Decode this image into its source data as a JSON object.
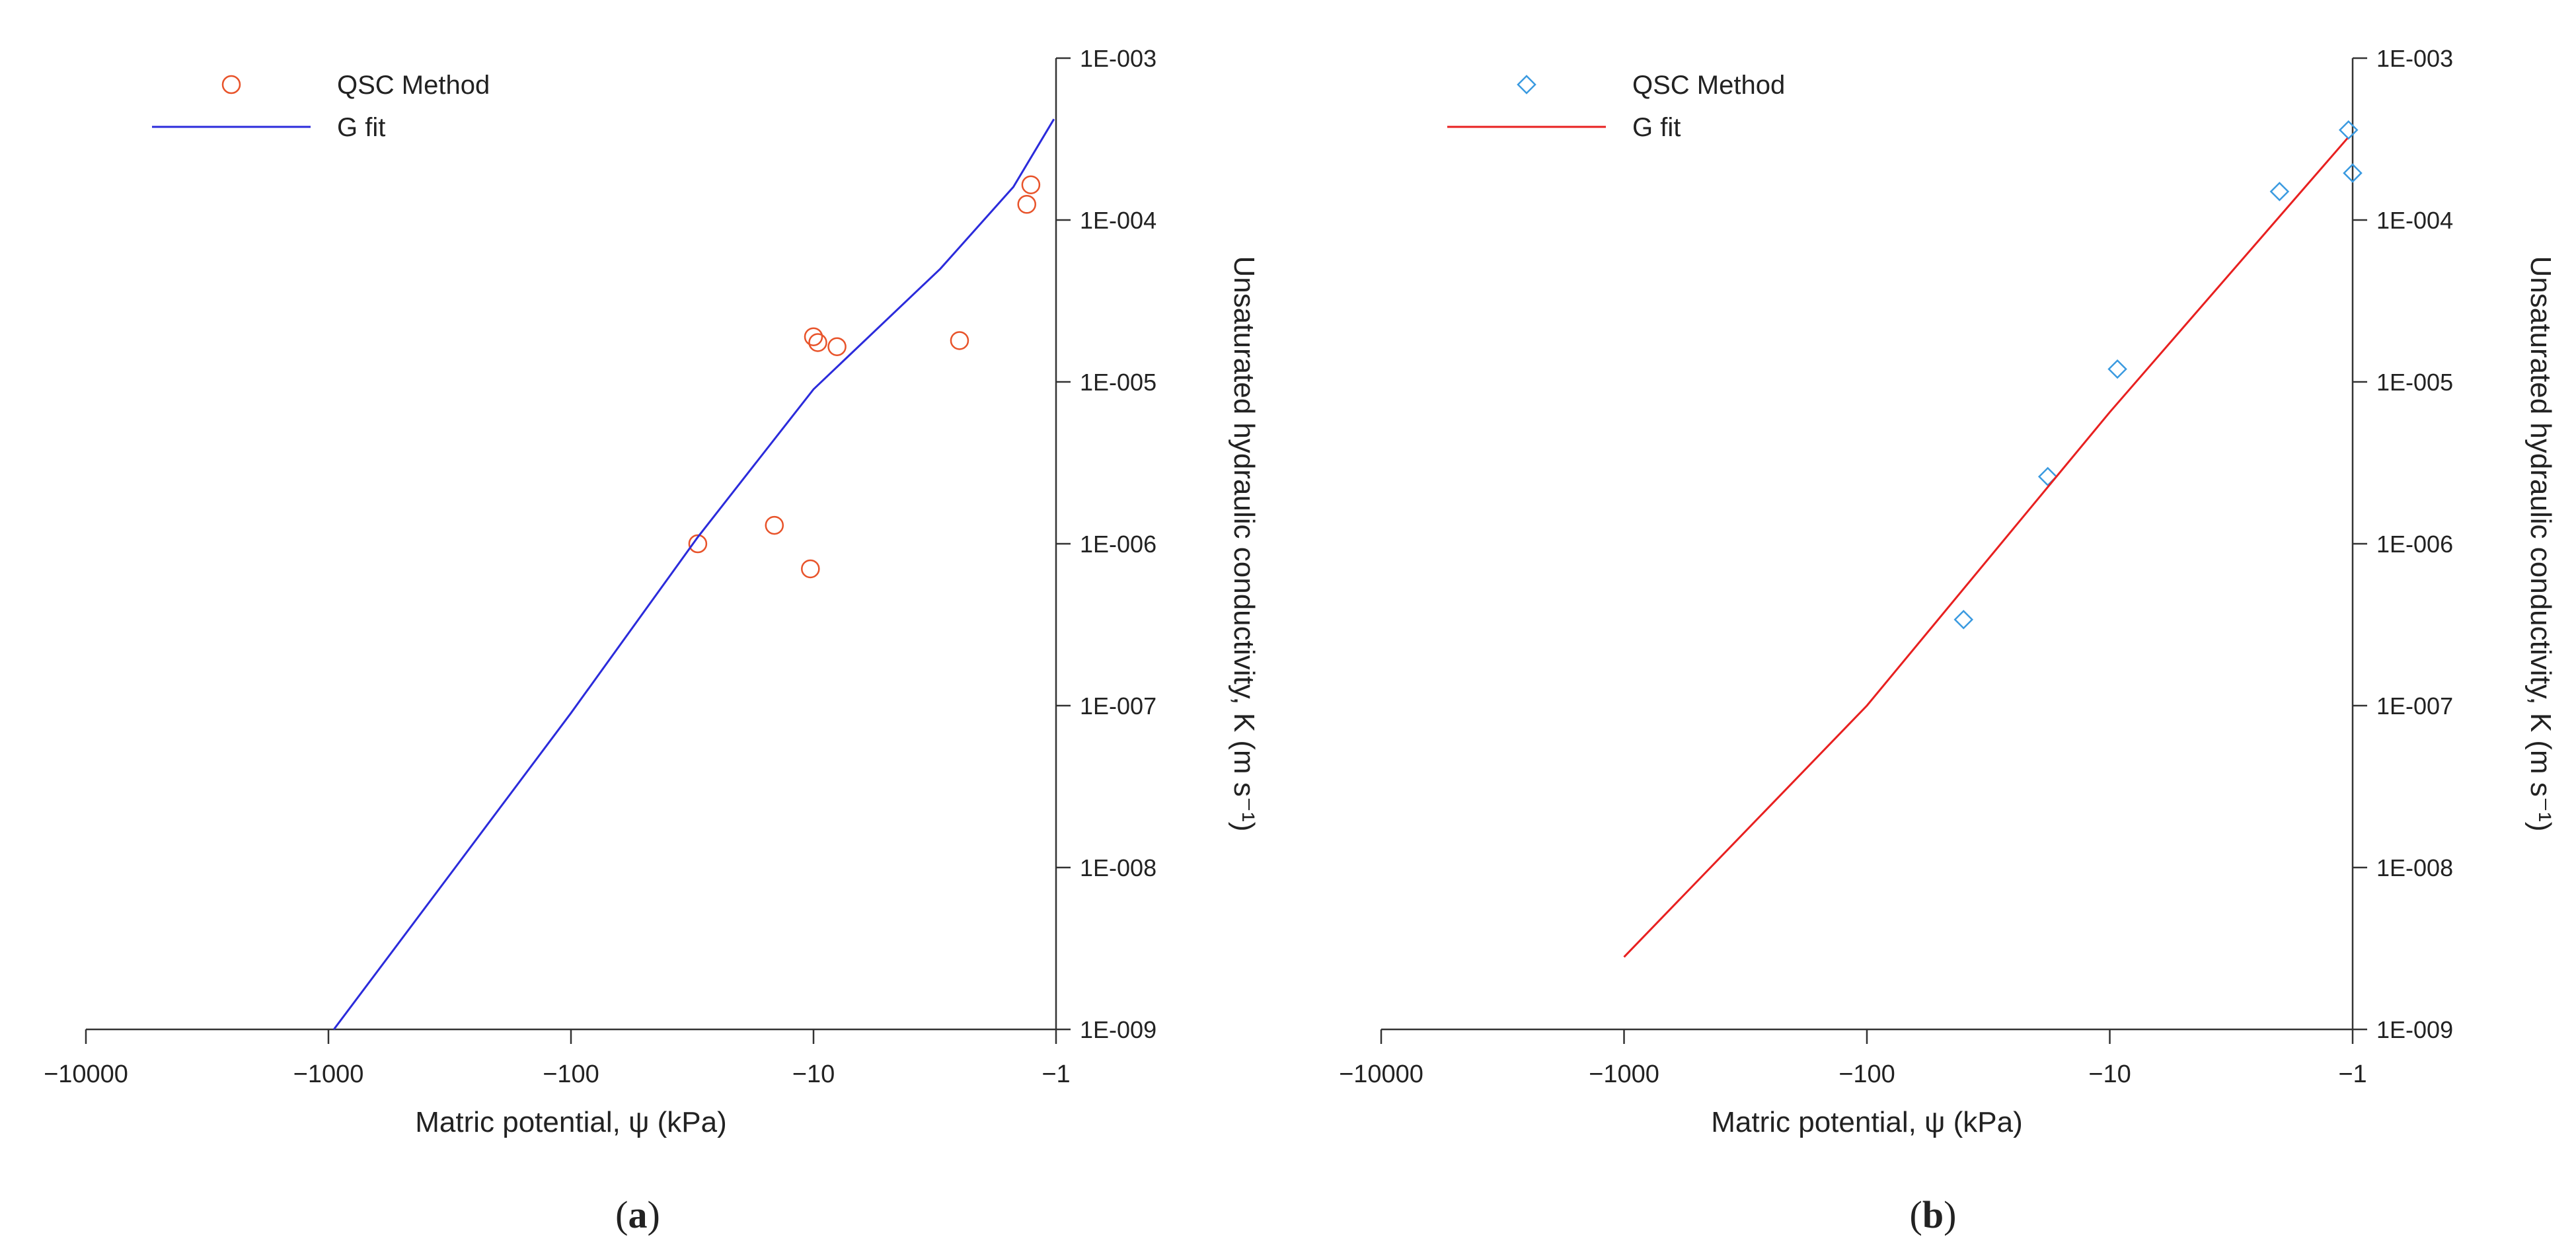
{
  "chart_data": [
    {
      "type": "scatter",
      "panel_label": "(a)",
      "panel_letter": "a",
      "xlabel": "Matric potential, ψ (kPa)",
      "ylabel": "Unsaturated hydraulic conductivity, K (m s⁻¹)",
      "xscale": "log",
      "yscale": "log",
      "xlim": [
        -10000,
        -1
      ],
      "ylim": [
        1e-09,
        0.001
      ],
      "x_ticks": [
        -10000,
        -1000,
        -100,
        -10,
        -1
      ],
      "x_tick_labels": [
        "−10000",
        "−1000",
        "−100",
        "−10",
        "−1"
      ],
      "y_ticks": [
        1e-09,
        1e-08,
        1e-07,
        1e-06,
        1e-05,
        0.0001,
        0.001
      ],
      "y_tick_labels": [
        "1E-009",
        "1E-008",
        "1E-007",
        "1E-006",
        "1E-005",
        "1E-004",
        "1E-003"
      ],
      "y_axis_side": "right",
      "legend_position": "top-left",
      "series": [
        {
          "name": "QSC Method",
          "kind": "points",
          "marker": "circle",
          "color": "#e8532a",
          "points": [
            {
              "x": -30,
              "y": 1e-06
            },
            {
              "x": -14.5,
              "y": 1.3e-06
            },
            {
              "x": -10.3,
              "y": 7e-07
            },
            {
              "x": -10,
              "y": 1.9e-05
            },
            {
              "x": -9.6,
              "y": 1.75e-05
            },
            {
              "x": -8,
              "y": 1.65e-05
            },
            {
              "x": -2.5,
              "y": 1.8e-05
            },
            {
              "x": -1.32,
              "y": 0.000125
            },
            {
              "x": -1.27,
              "y": 0.000165
            }
          ]
        },
        {
          "name": "G fit",
          "kind": "line",
          "color": "#2b2bdb",
          "points": [
            {
              "x": -950,
              "y": 1e-09
            },
            {
              "x": -300,
              "y": 1e-08
            },
            {
              "x": -100,
              "y": 9e-08
            },
            {
              "x": -30,
              "y": 1.1e-06
            },
            {
              "x": -10,
              "y": 9e-06
            },
            {
              "x": -3,
              "y": 5e-05
            },
            {
              "x": -1.5,
              "y": 0.00016
            },
            {
              "x": -1.02,
              "y": 0.00042
            }
          ]
        }
      ]
    },
    {
      "type": "scatter",
      "panel_label": "(b)",
      "panel_letter": "b",
      "xlabel": "Matric potential, ψ (kPa)",
      "ylabel": "Unsaturated hydraulic conductivity, K (m s⁻¹)",
      "xscale": "log",
      "yscale": "log",
      "xlim": [
        -10000,
        -1
      ],
      "ylim": [
        1e-09,
        0.001
      ],
      "x_ticks": [
        -10000,
        -1000,
        -100,
        -10,
        -1
      ],
      "x_tick_labels": [
        "−10000",
        "−1000",
        "−100",
        "−10",
        "−1"
      ],
      "y_ticks": [
        1e-09,
        1e-08,
        1e-07,
        1e-06,
        1e-05,
        0.0001,
        0.001
      ],
      "y_tick_labels": [
        "1E-009",
        "1E-008",
        "1E-007",
        "1E-006",
        "1E-005",
        "1E-004",
        "1E-003"
      ],
      "y_axis_side": "right",
      "legend_position": "top-left",
      "series": [
        {
          "name": "QSC Method",
          "kind": "points",
          "marker": "diamond",
          "color": "#3a9ae0",
          "points": [
            {
              "x": -40,
              "y": 3.4e-07
            },
            {
              "x": -18,
              "y": 2.6e-06
            },
            {
              "x": -9.3,
              "y": 1.2e-05
            },
            {
              "x": -2,
              "y": 0.00015
            },
            {
              "x": -1.04,
              "y": 0.00036
            },
            {
              "x": -1.0,
              "y": 0.000195
            }
          ]
        },
        {
          "name": "G fit",
          "kind": "line",
          "color": "#e82020",
          "points": [
            {
              "x": -1000,
              "y": 2.8e-09
            },
            {
              "x": -100,
              "y": 1e-07
            },
            {
              "x": -10,
              "y": 6.5e-06
            },
            {
              "x": -1.05,
              "y": 0.00032
            }
          ]
        }
      ]
    }
  ]
}
